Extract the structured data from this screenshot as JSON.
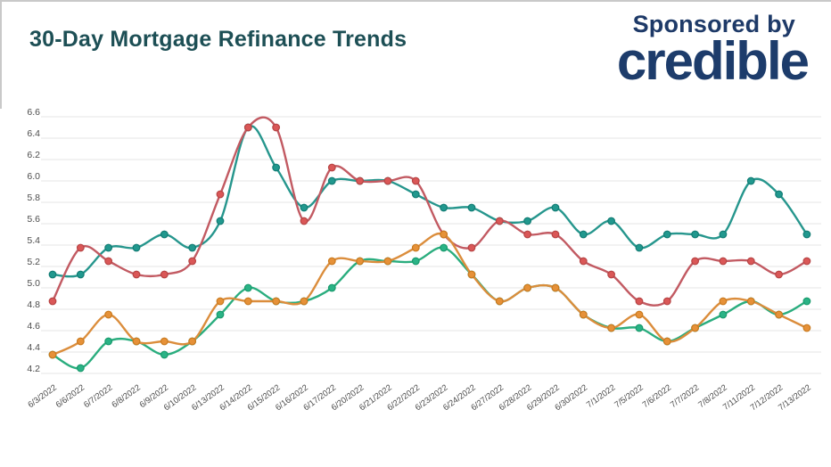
{
  "header": {
    "title": "30-Day Mortgage Refinance Trends",
    "sponsored_by": "Sponsored by",
    "sponsor_name": "credible"
  },
  "colors": {
    "title_text": "#1d4f55",
    "sponsor_text": "#1e3a68",
    "sponsor_wordmark": "#1d3c6b",
    "gridline": "#ebebeb",
    "tick_text": "#4d4d4d",
    "frame_border": "#c9c9c9",
    "background": "#ffffff"
  },
  "chart_data": {
    "type": "line",
    "title": "30-Day Mortgage Refinance Trends",
    "xlabel": "",
    "ylabel": "",
    "ylim": [
      4.2,
      6.6
    ],
    "ytick_step": 0.2,
    "grid": true,
    "legend": "none",
    "markers": true,
    "yticks": [
      "4.2",
      "4.4",
      "4.6",
      "4.8",
      "5.0",
      "5.2",
      "5.4",
      "5.6",
      "5.8",
      "6.0",
      "6.2",
      "6.4",
      "6.6"
    ],
    "x": [
      "6/3/2022",
      "6/6/2022",
      "6/7/2022",
      "6/8/2022",
      "6/9/2022",
      "6/10/2022",
      "6/13/2022",
      "6/14/2022",
      "6/15/2022",
      "6/16/2022",
      "6/17/2022",
      "6/20/2022",
      "6/21/2022",
      "6/22/2022",
      "6/23/2022",
      "6/24/2022",
      "6/27/2022",
      "6/28/2022",
      "6/29/2022",
      "6/30/2022",
      "7/1/2022",
      "7/5/2022",
      "7/6/2022",
      "7/7/2022",
      "7/8/2022",
      "7/11/2022",
      "7/12/2022",
      "7/13/2022"
    ],
    "series": [
      {
        "name": "teal-line",
        "line_color": "#26968d",
        "dot_color": "#21988e",
        "dot_edge": "#127c74",
        "values": [
          5.125,
          5.125,
          5.375,
          5.375,
          5.5,
          5.375,
          5.625,
          6.5,
          6.125,
          5.75,
          6.0,
          6.0,
          6.0,
          5.875,
          5.75,
          5.75,
          5.625,
          5.625,
          5.75,
          5.5,
          5.625,
          5.375,
          5.5,
          5.5,
          5.5,
          6.0,
          5.875,
          5.5
        ]
      },
      {
        "name": "red-line",
        "line_color": "#c25a62",
        "dot_color": "#da5757",
        "dot_edge": "#b64444",
        "values": [
          4.875,
          5.375,
          5.25,
          5.125,
          5.125,
          5.25,
          5.875,
          6.5,
          6.5,
          5.625,
          6.125,
          6.0,
          6.0,
          6.0,
          5.5,
          5.375,
          5.625,
          5.5,
          5.5,
          5.25,
          5.125,
          4.875,
          4.875,
          5.25,
          5.25,
          5.25,
          5.125,
          5.25
        ]
      },
      {
        "name": "green-line",
        "line_color": "#2aad7e",
        "dot_color": "#2ab386",
        "dot_edge": "#189a6c",
        "values": [
          4.375,
          4.25,
          4.5,
          4.5,
          4.375,
          4.5,
          4.75,
          5.0,
          4.875,
          4.875,
          5.0,
          5.25,
          5.25,
          5.25,
          5.375,
          5.125,
          4.875,
          5.0,
          5.0,
          4.75,
          4.625,
          4.625,
          4.5,
          4.625,
          4.75,
          4.875,
          4.75,
          4.875
        ]
      },
      {
        "name": "orange-line",
        "line_color": "#db8d3c",
        "dot_color": "#e69138",
        "dot_edge": "#c97a1f",
        "values": [
          4.375,
          4.5,
          4.75,
          4.5,
          4.5,
          4.5,
          4.875,
          4.875,
          4.875,
          4.875,
          5.25,
          5.25,
          5.25,
          5.375,
          5.5,
          5.125,
          4.875,
          5.0,
          5.0,
          4.75,
          4.625,
          4.75,
          4.5,
          4.625,
          4.875,
          4.875,
          4.75,
          4.625
        ]
      }
    ]
  }
}
